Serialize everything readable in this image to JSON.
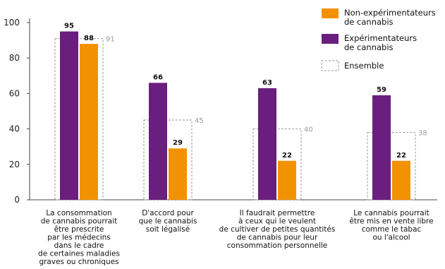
{
  "chart_data": {
    "type": "bar",
    "categories": [
      [
        "La consommation",
        "de cannabis pourrait",
        "être prescrite",
        "par les médecins",
        "dans le cadre",
        "de certaines maladies",
        "graves ou chroniques"
      ],
      [
        "D'accord pour",
        "que le cannabis",
        "soit légalisé"
      ],
      [
        "Il faudrait permettre",
        "à ceux qui le veulent",
        "de cultiver de petites quantités",
        "de cannabis pour leur",
        "consommation personnelle"
      ],
      [
        "Le cannabis pourrait",
        "être mis en vente libre",
        "comme le tabac",
        "ou l'alcool"
      ]
    ],
    "series": [
      {
        "name": "Expérimentateurs de cannabis",
        "legend_lines": [
          "Expérimentateurs",
          "de cannabis"
        ],
        "values": [
          95,
          66,
          63,
          59
        ],
        "color": "#6a1e7e"
      },
      {
        "name": "Non-expérimentateurs de cannabis",
        "legend_lines": [
          "Non-expérimentateurs",
          "de cannabis"
        ],
        "values": [
          88,
          29,
          22,
          22
        ],
        "color": "#f39200"
      }
    ],
    "total": {
      "name": "Ensemble",
      "values": [
        91,
        45,
        40,
        38
      ],
      "style": "dashed-outline",
      "color": "#9a9a9a"
    },
    "legend_order": [
      1,
      0
    ],
    "ylim": [
      0,
      100
    ],
    "yticks": [
      0,
      20,
      40,
      60,
      80,
      100
    ],
    "legend_position": "top-right",
    "grid": false,
    "title": "",
    "xlabel": "",
    "ylabel": ""
  }
}
